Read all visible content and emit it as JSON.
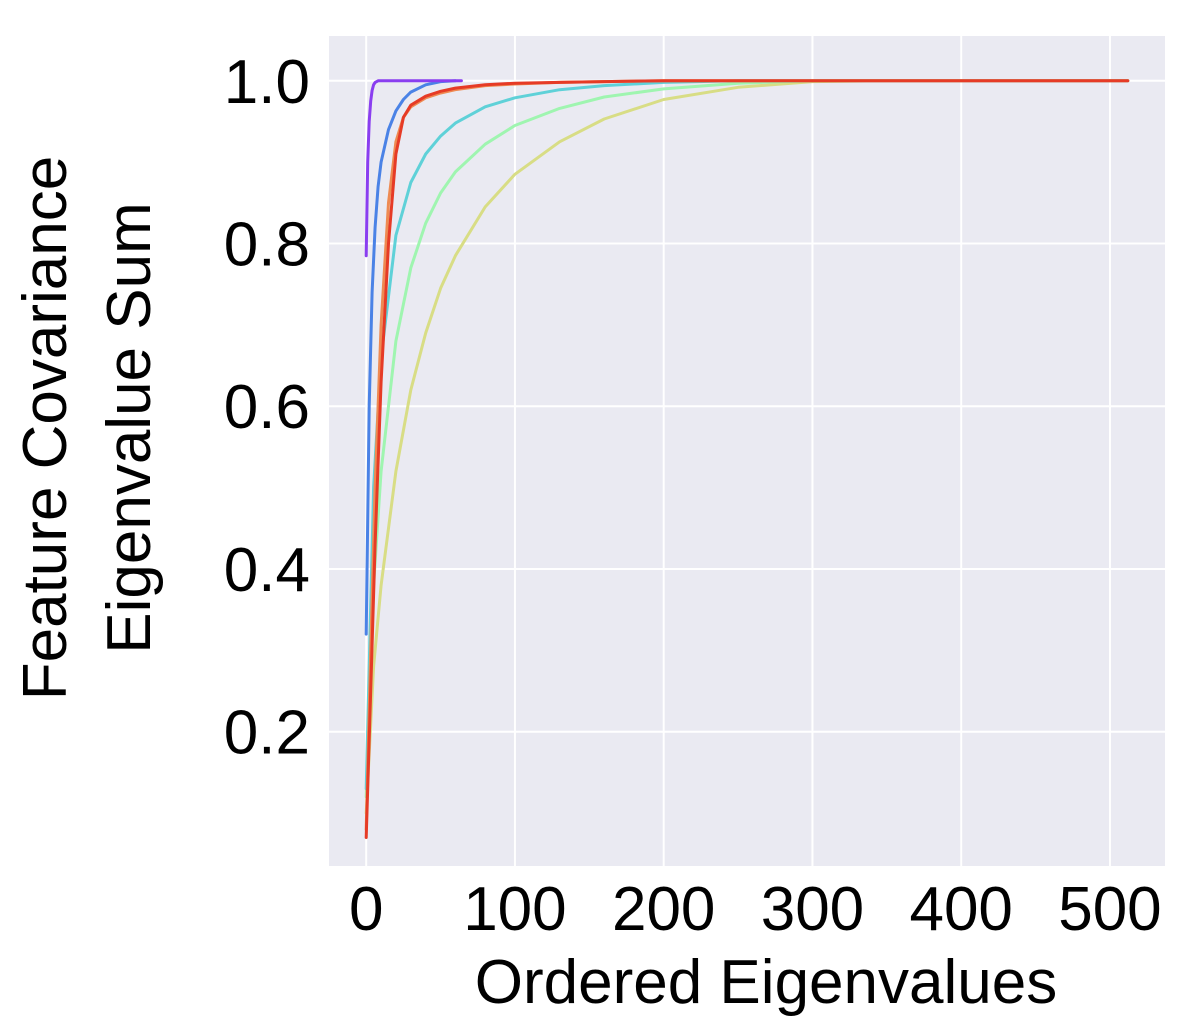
{
  "chart_data": {
    "type": "line",
    "title": "",
    "xlabel": "Ordered Eigenvalues",
    "ylabel": [
      "Feature Covariance",
      "Eigenvalue Sum"
    ],
    "xlim": [
      -25,
      537
    ],
    "ylim": [
      0.035,
      1.055
    ],
    "xticks": [
      0,
      100,
      200,
      300,
      400,
      500
    ],
    "xtick_labels": [
      "0",
      "100",
      "200",
      "300",
      "400",
      "500"
    ],
    "yticks": [
      0.2,
      0.4,
      0.6,
      0.8,
      1.0
    ],
    "ytick_labels": [
      "0.2",
      "0.4",
      "0.6",
      "0.8",
      "1.0"
    ],
    "grid": true,
    "background": "#eaeaf2",
    "gridline_color": "#ffffff",
    "series": [
      {
        "color": "#d8dd85",
        "x": [
          0,
          5,
          10,
          20,
          30,
          40,
          50,
          60,
          80,
          100,
          130,
          160,
          200,
          250,
          300,
          350,
          400,
          450,
          512
        ],
        "y": [
          0.1,
          0.28,
          0.38,
          0.52,
          0.62,
          0.69,
          0.745,
          0.785,
          0.845,
          0.885,
          0.925,
          0.953,
          0.977,
          0.992,
          0.999,
          1.0,
          1.0,
          1.0,
          1.0
        ]
      },
      {
        "color": "#9ff5b0",
        "x": [
          0,
          5,
          10,
          20,
          30,
          40,
          50,
          60,
          80,
          100,
          130,
          160,
          200,
          250,
          300,
          350,
          400,
          450,
          512
        ],
        "y": [
          0.12,
          0.38,
          0.52,
          0.68,
          0.77,
          0.825,
          0.862,
          0.888,
          0.922,
          0.945,
          0.966,
          0.98,
          0.99,
          0.997,
          1.0,
          1.0,
          1.0,
          1.0,
          1.0
        ]
      },
      {
        "color": "#5fd1d8",
        "x": [
          0,
          5,
          10,
          20,
          30,
          40,
          50,
          60,
          80,
          100,
          130,
          160,
          200,
          250,
          300,
          350,
          400,
          450,
          512
        ],
        "y": [
          0.13,
          0.5,
          0.66,
          0.81,
          0.875,
          0.91,
          0.932,
          0.948,
          0.968,
          0.979,
          0.989,
          0.994,
          0.998,
          1.0,
          1.0,
          1.0,
          1.0,
          1.0,
          1.0
        ]
      },
      {
        "color": "#4a82e6",
        "x": [
          0,
          2,
          4,
          6,
          8,
          10,
          15,
          20,
          25,
          30,
          40,
          50,
          60
        ],
        "y": [
          0.32,
          0.6,
          0.74,
          0.82,
          0.87,
          0.9,
          0.94,
          0.963,
          0.977,
          0.986,
          0.995,
          0.999,
          1.0
        ]
      },
      {
        "color": "#8a3ef0",
        "x": [
          0,
          1,
          2,
          3,
          4,
          5,
          6,
          8,
          10,
          20,
          40,
          64
        ],
        "y": [
          0.785,
          0.9,
          0.95,
          0.975,
          0.988,
          0.995,
          0.998,
          1.0,
          1.0,
          1.0,
          1.0,
          1.0
        ]
      },
      {
        "color": "#ee8a52",
        "x": [
          0,
          3,
          6,
          10,
          15,
          20,
          25,
          30,
          40,
          50,
          60,
          80,
          100,
          130,
          160,
          200,
          250,
          300,
          400,
          512
        ],
        "y": [
          0.08,
          0.3,
          0.5,
          0.7,
          0.85,
          0.925,
          0.955,
          0.968,
          0.979,
          0.985,
          0.989,
          0.994,
          0.996,
          0.998,
          0.999,
          1.0,
          1.0,
          1.0,
          1.0,
          1.0
        ]
      },
      {
        "color": "#e63b26",
        "x": [
          0,
          3,
          6,
          10,
          15,
          20,
          25,
          30,
          40,
          50,
          60,
          80,
          100,
          130,
          160,
          200,
          250,
          300,
          400,
          512
        ],
        "y": [
          0.07,
          0.25,
          0.43,
          0.63,
          0.8,
          0.91,
          0.955,
          0.97,
          0.981,
          0.987,
          0.991,
          0.995,
          0.997,
          0.998,
          0.999,
          1.0,
          1.0,
          1.0,
          1.0,
          1.0
        ]
      }
    ]
  }
}
